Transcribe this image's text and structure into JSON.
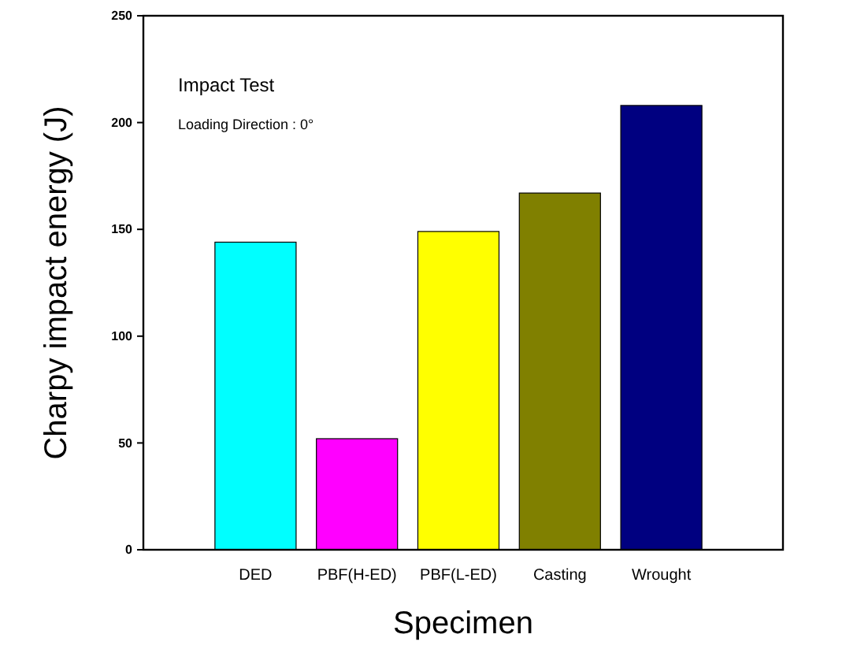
{
  "chart_data": {
    "type": "bar",
    "xlabel": "Specimen",
    "ylabel": "Charpy impact energy (J)",
    "categories": [
      "DED",
      "PBF(H-ED)",
      "PBF(L-ED)",
      "Casting",
      "Wrought"
    ],
    "values": [
      144,
      52,
      149,
      167,
      208
    ],
    "colors": [
      "#00ffff",
      "#ff00ff",
      "#ffff00",
      "#808000",
      "#000080"
    ],
    "ylim": [
      0,
      250
    ],
    "yticks": [
      0,
      50,
      100,
      150,
      200,
      250
    ],
    "grid": false,
    "annotations": [
      "Impact Test",
      "Loading Direction : 0°"
    ]
  }
}
